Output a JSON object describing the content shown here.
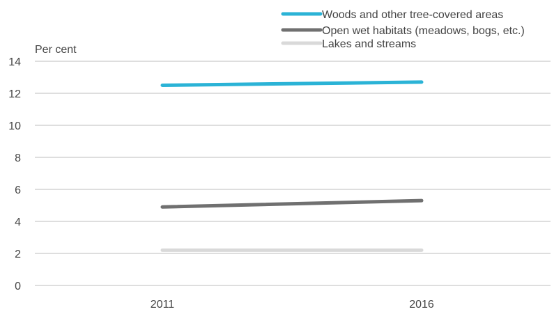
{
  "chart_data": {
    "type": "line",
    "ylabel": "Per cent",
    "xlabel": "",
    "title": "",
    "categories": [
      "2011",
      "2016"
    ],
    "ylim": [
      0,
      14
    ],
    "yticks": [
      "0",
      "2",
      "4",
      "6",
      "8",
      "10",
      "12",
      "14"
    ],
    "grid": "horizontal",
    "legend_position": "top",
    "series": [
      {
        "name": "Woods and other tree-covered areas",
        "values": [
          12.5,
          12.7
        ],
        "color": "#2bb3d6"
      },
      {
        "name": "Open wet habitats (meadows, bogs, etc.)",
        "values": [
          4.9,
          5.3
        ],
        "color": "#707070"
      },
      {
        "name": "Lakes and streams",
        "values": [
          2.2,
          2.2
        ],
        "color": "#d9d9d9"
      }
    ]
  }
}
